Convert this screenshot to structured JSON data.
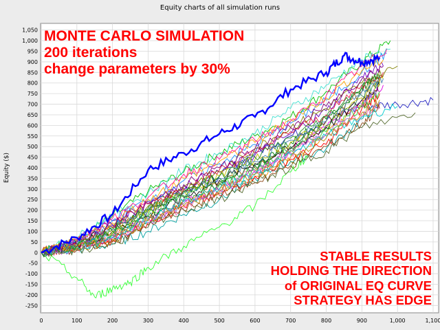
{
  "chart_data": {
    "type": "line",
    "title": "Equity charts of all simulation runs",
    "xlabel": "",
    "ylabel": "Equity ($)",
    "xlim": [
      0,
      1100
    ],
    "ylim": [
      -275,
      1075
    ],
    "x_ticks": [
      "0",
      "100",
      "200",
      "300",
      "400",
      "500",
      "600",
      "700",
      "800",
      "900",
      "1,000",
      "1,100"
    ],
    "y_ticks": [
      "-250",
      "-200",
      "-150",
      "-100",
      "-50",
      "0",
      "50",
      "100",
      "150",
      "200",
      "250",
      "300",
      "350",
      "400",
      "450",
      "500",
      "550",
      "600",
      "650",
      "700",
      "750",
      "800",
      "850",
      "900",
      "950",
      "1,000",
      "1,050"
    ],
    "grid": true,
    "legend": "none",
    "series_count": 200,
    "series": [
      {
        "x": [
          0,
          100,
          200,
          300,
          400,
          500,
          600,
          700,
          800,
          850,
          900,
          950
        ],
        "values": [
          0,
          70,
          180,
          390,
          470,
          560,
          640,
          770,
          850,
          930,
          900,
          920
        ],
        "color": "#0000ff"
      },
      {
        "x": [
          0,
          100,
          200,
          300,
          400,
          500,
          600,
          700,
          800,
          900,
          980
        ],
        "values": [
          0,
          60,
          170,
          290,
          380,
          470,
          550,
          640,
          760,
          900,
          1000
        ],
        "color": "#00c000"
      },
      {
        "x": [
          0,
          100,
          200,
          300,
          400,
          500,
          600,
          700,
          800,
          900,
          1000,
          1100
        ],
        "values": [
          0,
          40,
          130,
          200,
          300,
          360,
          470,
          550,
          620,
          690,
          700,
          720
        ],
        "color": "#2020c0"
      },
      {
        "x": [
          0,
          100,
          200,
          300,
          400,
          500,
          600,
          700,
          800,
          900,
          960
        ],
        "values": [
          0,
          30,
          70,
          160,
          250,
          290,
          380,
          480,
          590,
          720,
          790
        ],
        "color": "#e000e0"
      },
      {
        "x": [
          0,
          100,
          200,
          300,
          400,
          500,
          600,
          700,
          800,
          900,
          940
        ],
        "values": [
          0,
          20,
          60,
          150,
          240,
          300,
          360,
          430,
          560,
          700,
          760
        ],
        "color": "#ff8c00"
      },
      {
        "x": [
          0,
          100,
          200,
          300,
          400,
          500,
          600,
          700,
          800,
          900,
          950
        ],
        "values": [
          0,
          10,
          40,
          100,
          180,
          250,
          350,
          430,
          490,
          630,
          700
        ],
        "color": "#00a0a0"
      },
      {
        "x": [
          0,
          100,
          200,
          300,
          400,
          500,
          600,
          700,
          800,
          900,
          960
        ],
        "values": [
          0,
          30,
          90,
          200,
          300,
          330,
          400,
          500,
          620,
          760,
          830
        ],
        "color": "#a06000"
      },
      {
        "x": [
          0,
          100,
          200,
          300,
          400,
          500,
          600,
          700,
          800,
          900,
          950
        ],
        "values": [
          0,
          20,
          60,
          140,
          220,
          270,
          360,
          440,
          510,
          680,
          750
        ],
        "color": "#ff0000"
      },
      {
        "x": [
          0,
          100,
          200,
          300,
          400,
          500,
          600,
          700,
          800,
          900,
          940
        ],
        "values": [
          0,
          50,
          120,
          210,
          290,
          350,
          410,
          520,
          630,
          780,
          830
        ],
        "color": "#008000"
      },
      {
        "x": [
          0,
          100,
          200,
          300,
          400,
          500,
          600,
          700,
          800,
          900,
          950
        ],
        "values": [
          0,
          40,
          100,
          170,
          260,
          340,
          420,
          490,
          590,
          720,
          790
        ],
        "color": "#000000"
      },
      {
        "x": [
          0,
          100,
          200,
          300,
          400,
          500,
          600,
          700,
          800,
          900,
          960
        ],
        "values": [
          0,
          60,
          150,
          240,
          320,
          380,
          460,
          560,
          670,
          830,
          880
        ],
        "color": "#6a00c0"
      },
      {
        "x": [
          0,
          100,
          200,
          300,
          400,
          500,
          600,
          700,
          800,
          900,
          950
        ],
        "values": [
          0,
          20,
          80,
          150,
          210,
          290,
          390,
          470,
          560,
          650,
          700
        ],
        "color": "#ff69b4"
      },
      {
        "x": [
          0,
          100,
          200,
          300,
          400,
          500,
          600,
          700,
          800,
          900,
          1000
        ],
        "values": [
          0,
          40,
          110,
          220,
          310,
          380,
          490,
          590,
          680,
          800,
          880
        ],
        "color": "#808000"
      },
      {
        "x": [
          0,
          100,
          200,
          300,
          400,
          500,
          600,
          700,
          800,
          900,
          980
        ],
        "values": [
          0,
          70,
          180,
          280,
          390,
          470,
          560,
          680,
          790,
          910,
          960
        ],
        "color": "#40e0d0"
      },
      {
        "x": [
          0,
          100,
          200,
          300,
          400,
          500,
          600,
          700,
          800,
          900,
          960
        ],
        "values": [
          0,
          30,
          100,
          190,
          290,
          360,
          440,
          520,
          600,
          730,
          820
        ],
        "color": "#c0c000"
      },
      {
        "x": [
          0,
          100,
          200,
          300,
          400,
          500,
          600,
          700,
          800,
          900,
          950
        ],
        "values": [
          0,
          10,
          50,
          130,
          200,
          280,
          330,
          410,
          500,
          610,
          680
        ],
        "color": "#8b4513"
      },
      {
        "x": [
          0,
          100,
          200,
          300,
          400,
          500,
          600,
          700,
          800,
          900,
          970
        ],
        "values": [
          0,
          50,
          150,
          250,
          340,
          420,
          510,
          610,
          720,
          850,
          940
        ],
        "color": "#1e90ff"
      },
      {
        "x": [
          0,
          100,
          200,
          300,
          400,
          500,
          600,
          700,
          800,
          900,
          950
        ],
        "values": [
          0,
          30,
          90,
          180,
          270,
          320,
          390,
          480,
          570,
          690,
          760
        ],
        "color": "#32cd32"
      },
      {
        "x": [
          0,
          100,
          200,
          300,
          400,
          500,
          600,
          700,
          800,
          900,
          960
        ],
        "values": [
          0,
          40,
          120,
          230,
          300,
          390,
          470,
          570,
          650,
          790,
          850
        ],
        "color": "#dc143c"
      },
      {
        "x": [
          0,
          100,
          200,
          300,
          400,
          500,
          600,
          700,
          800,
          900,
          940
        ],
        "values": [
          0,
          20,
          70,
          140,
          230,
          300,
          380,
          470,
          560,
          700,
          760
        ],
        "color": "#9370db"
      },
      {
        "x": [
          0,
          100,
          200,
          300,
          400,
          500,
          600,
          700,
          800,
          900,
          960
        ],
        "values": [
          0,
          50,
          140,
          250,
          350,
          430,
          520,
          630,
          730,
          860,
          910
        ],
        "color": "#ffa500"
      },
      {
        "x": [
          0,
          100,
          200,
          300,
          400,
          500,
          600,
          700,
          800,
          900,
          950
        ],
        "values": [
          0,
          30,
          80,
          170,
          250,
          320,
          410,
          500,
          600,
          740,
          800
        ],
        "color": "#2e8b57"
      },
      {
        "x": [
          0,
          100,
          150,
          200,
          250,
          300,
          400,
          500,
          600,
          700,
          750
        ],
        "values": [
          0,
          -120,
          -210,
          -170,
          -140,
          -70,
          30,
          120,
          220,
          380,
          460
        ],
        "color": "#33ff33"
      },
      {
        "x": [
          0,
          100,
          200,
          300,
          400,
          500,
          600,
          700,
          800,
          900,
          1000
        ],
        "values": [
          0,
          20,
          70,
          160,
          240,
          300,
          370,
          460,
          550,
          640,
          690
        ],
        "color": "#00ced1"
      },
      {
        "x": [
          0,
          100,
          200,
          300,
          400,
          500,
          600,
          700,
          800,
          900,
          1050
        ],
        "values": [
          0,
          10,
          40,
          120,
          200,
          250,
          330,
          400,
          480,
          590,
          660
        ],
        "color": "#556b2f"
      },
      {
        "x": [
          0,
          100,
          200,
          300,
          400,
          500,
          600,
          700,
          800,
          900,
          970
        ],
        "values": [
          0,
          60,
          160,
          260,
          370,
          440,
          530,
          620,
          740,
          880,
          960
        ],
        "color": "#ff1493"
      },
      {
        "x": [
          0,
          100,
          200,
          300,
          400,
          500,
          600,
          700,
          800,
          900,
          960
        ],
        "values": [
          0,
          40,
          110,
          200,
          280,
          350,
          430,
          530,
          620,
          760,
          820
        ],
        "color": "#4682b4"
      },
      {
        "x": [
          0,
          100,
          200,
          300,
          400,
          500,
          600,
          700,
          800,
          900,
          950
        ],
        "values": [
          0,
          20,
          60,
          150,
          220,
          290,
          370,
          450,
          540,
          660,
          720
        ],
        "color": "#b8860b"
      },
      {
        "x": [
          0,
          100,
          200,
          300,
          400,
          500,
          600,
          700,
          800,
          900,
          950
        ],
        "values": [
          0,
          30,
          100,
          200,
          290,
          360,
          450,
          540,
          640,
          780,
          840
        ],
        "color": "#228b22"
      },
      {
        "x": [
          0,
          100,
          200,
          300,
          400,
          500,
          600,
          700,
          800,
          900,
          960
        ],
        "values": [
          0,
          50,
          130,
          230,
          320,
          400,
          490,
          590,
          690,
          820,
          880
        ],
        "color": "#800080"
      }
    ]
  },
  "overlay": {
    "top": [
      "MONTE CARLO SIMULATION",
      "200 iterations",
      "change parameters by 30%"
    ],
    "bottom": [
      "STABLE RESULTS",
      "HOLDING THE DIRECTION",
      "of ORIGINAL EQ CURVE",
      "STRATEGY HAS EDGE"
    ],
    "color": "#ff0000"
  }
}
